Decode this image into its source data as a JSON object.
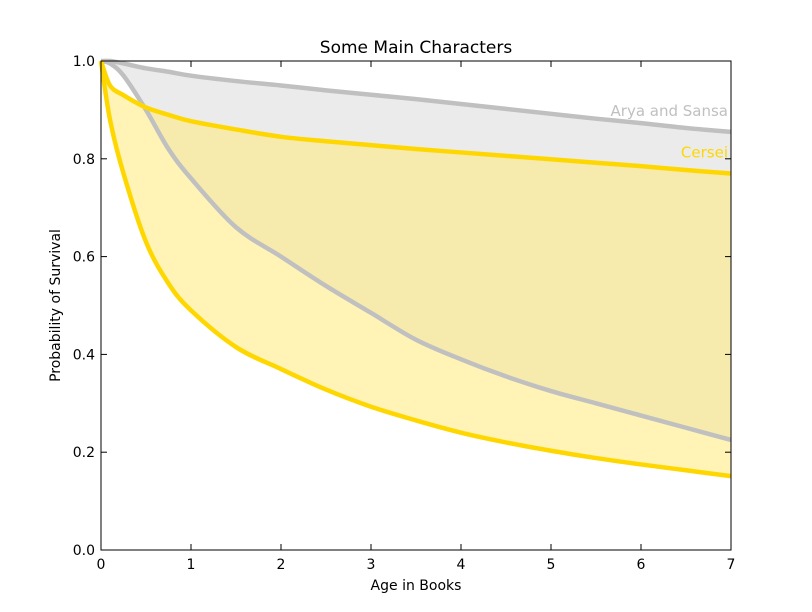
{
  "chart_data": {
    "type": "area",
    "title": "Some Main Characters",
    "xlabel": "Age in Books",
    "ylabel": "Probability of Survival",
    "xlim": [
      0,
      7
    ],
    "ylim": [
      0.0,
      1.0
    ],
    "xticks": [
      0,
      1,
      2,
      3,
      4,
      5,
      6,
      7
    ],
    "xtick_labels": [
      "0",
      "1",
      "2",
      "3",
      "4",
      "5",
      "6",
      "7"
    ],
    "yticks": [
      0.0,
      0.2,
      0.4,
      0.6,
      0.8,
      1.0
    ],
    "ytick_labels": [
      "0.0",
      "0.2",
      "0.4",
      "0.6",
      "0.8",
      "1.0"
    ],
    "grid": false,
    "x": [
      0,
      0.1,
      0.25,
      0.5,
      0.75,
      1,
      1.5,
      2,
      2.5,
      3,
      3.5,
      4,
      4.5,
      5,
      5.5,
      6,
      6.5,
      7
    ],
    "series": [
      {
        "name": "Arya and Sansa",
        "label_text": "Arya and Sansa",
        "label_position": "upper-right",
        "color": "#c0c0c0",
        "fill": "#e0e0e0",
        "fill_opacity": 0.65,
        "upper": [
          1.0,
          1.0,
          0.995,
          0.985,
          0.978,
          0.97,
          0.959,
          0.95,
          0.94,
          0.931,
          0.922,
          0.912,
          0.902,
          0.892,
          0.882,
          0.873,
          0.863,
          0.855
        ],
        "lower": [
          1.0,
          0.995,
          0.97,
          0.9,
          0.82,
          0.76,
          0.66,
          0.6,
          0.54,
          0.485,
          0.43,
          0.39,
          0.355,
          0.325,
          0.3,
          0.275,
          0.25,
          0.225
        ]
      },
      {
        "name": "Cersei",
        "label_text": "Cersei",
        "label_position": "upper-right",
        "color": "#ffd700",
        "fill": "#ffe97a",
        "fill_opacity": 0.55,
        "upper": [
          1.0,
          0.95,
          0.93,
          0.905,
          0.89,
          0.877,
          0.86,
          0.845,
          0.836,
          0.828,
          0.82,
          0.813,
          0.806,
          0.799,
          0.792,
          0.785,
          0.777,
          0.77
        ],
        "lower": [
          1.0,
          0.88,
          0.77,
          0.63,
          0.545,
          0.49,
          0.415,
          0.37,
          0.328,
          0.293,
          0.265,
          0.24,
          0.22,
          0.203,
          0.188,
          0.175,
          0.163,
          0.151
        ]
      }
    ]
  }
}
